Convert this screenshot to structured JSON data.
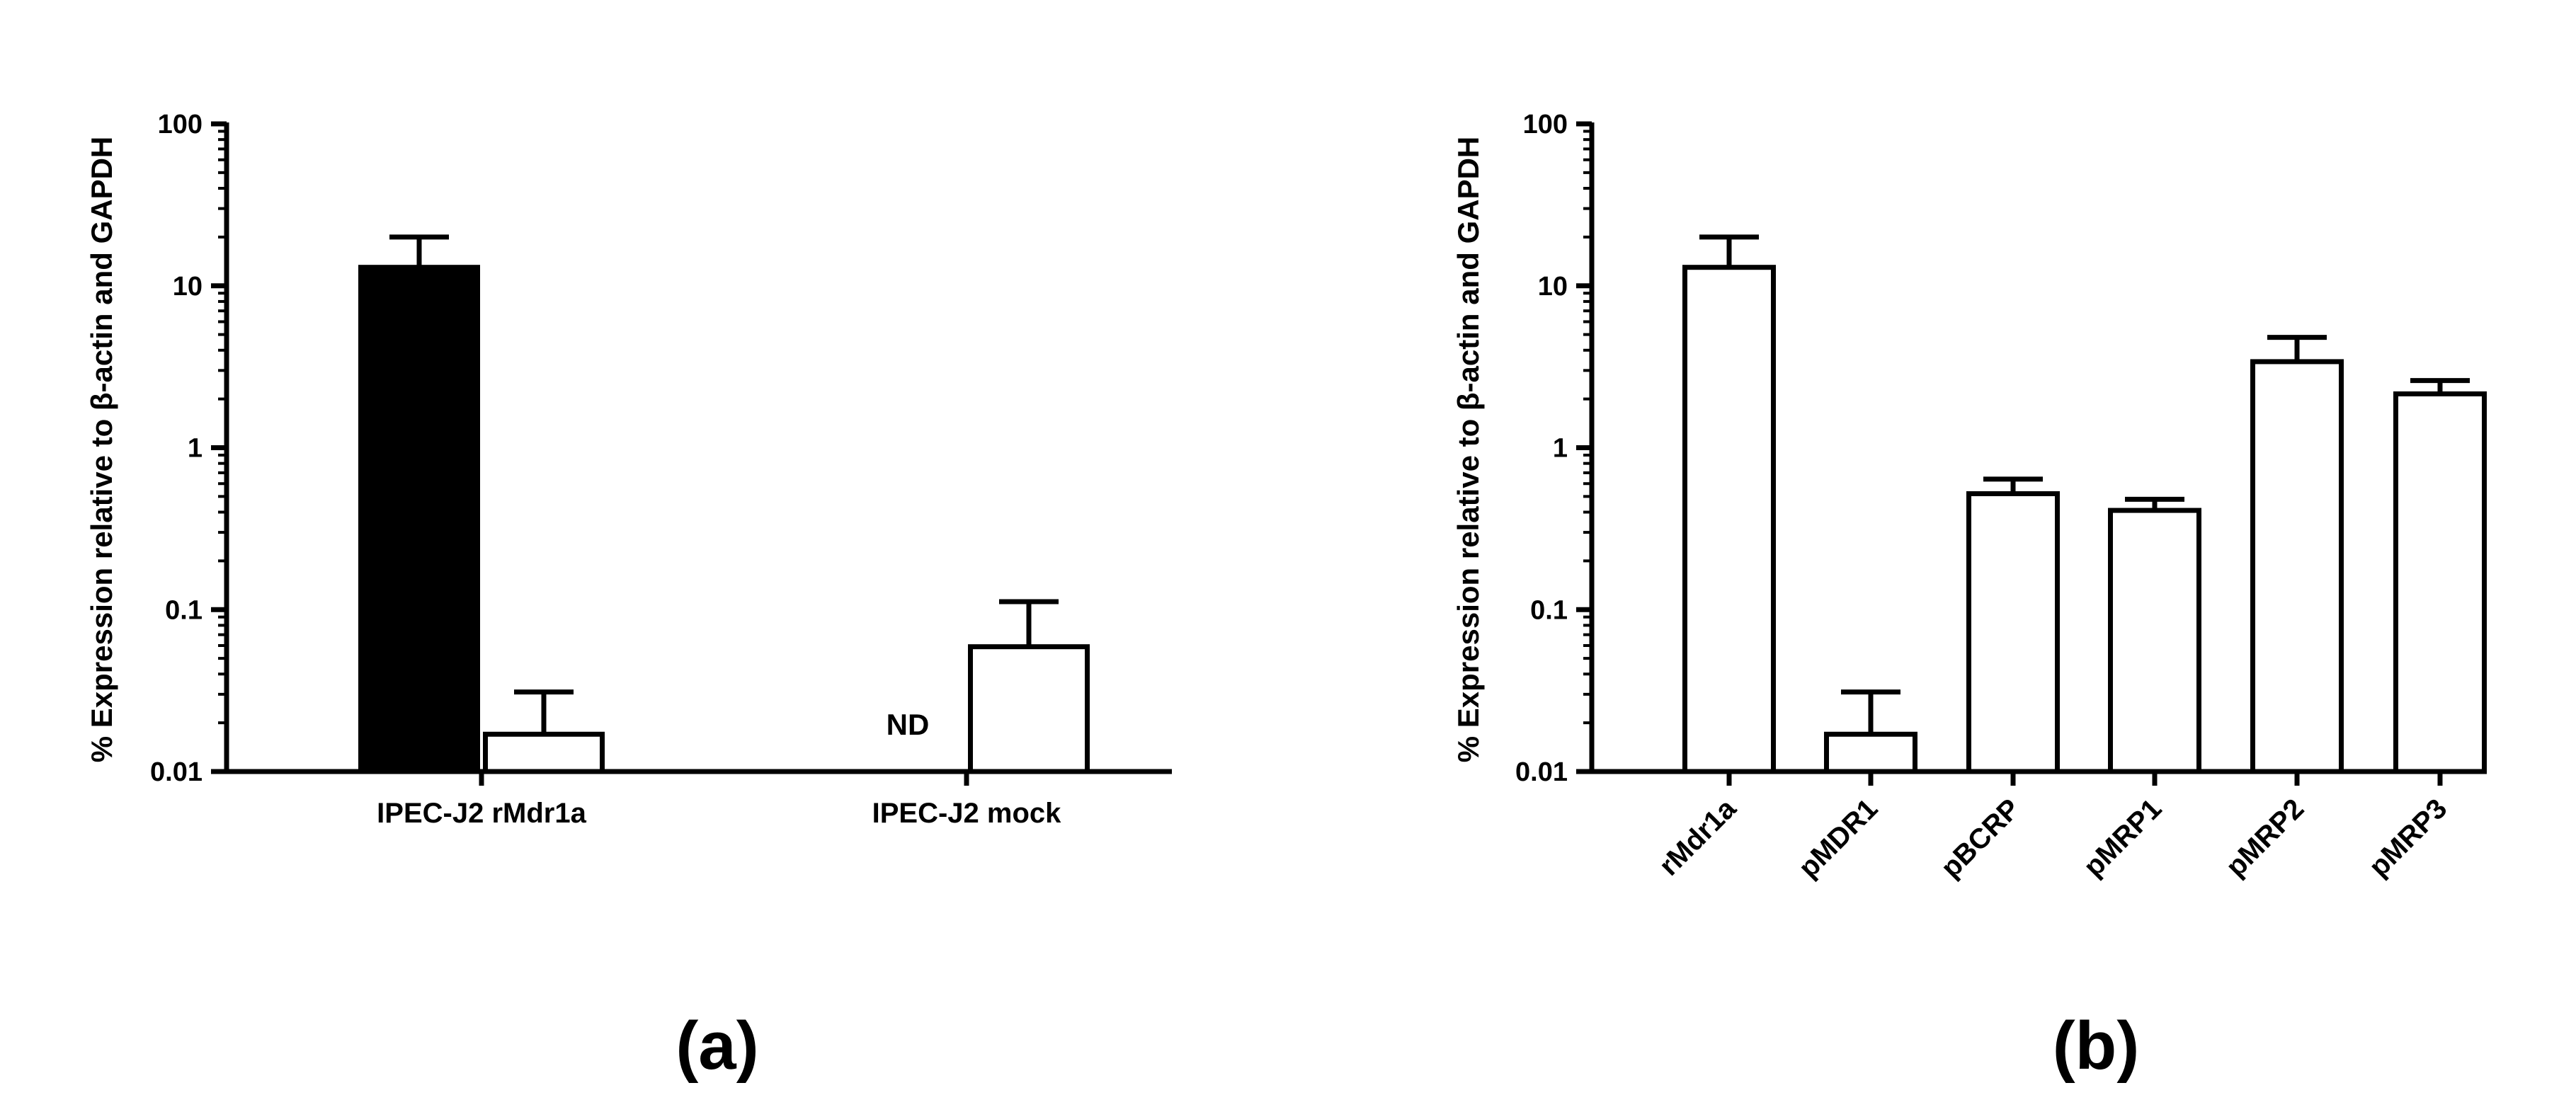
{
  "chart_data": [
    {
      "panel": "(a)",
      "type": "bar",
      "scale": "log",
      "ylabel": "% Expression relative to β-actin and GAPDH",
      "yticks": [
        "100",
        "10",
        "1",
        "0.1",
        "0.01"
      ],
      "ylim": [
        0.01,
        100
      ],
      "categories": [
        "IPEC-J2 rMdr1a",
        "IPEC-J2 mock"
      ],
      "bars": [
        {
          "group": 0,
          "fill": "#000000",
          "value": 13.0,
          "error": 20.0,
          "nd": false,
          "label": ""
        },
        {
          "group": 0,
          "fill": "#ffffff",
          "value": 0.017,
          "error": 0.031,
          "nd": false,
          "label": ""
        },
        {
          "group": 1,
          "fill": "#000000",
          "value": 0.01,
          "error": null,
          "nd": true,
          "label": "ND"
        },
        {
          "group": 1,
          "fill": "#ffffff",
          "value": 0.059,
          "error": 0.112,
          "nd": false,
          "label": ""
        }
      ]
    },
    {
      "panel": "(b)",
      "type": "bar",
      "scale": "log",
      "ylabel": "% Expression relative to β-actin and GAPDH",
      "yticks": [
        "100",
        "10",
        "1",
        "0.1",
        "0.01"
      ],
      "ylim": [
        0.01,
        100
      ],
      "categories": [
        "rMdr1a",
        "pMDR1",
        "pBCRP",
        "pMRP1",
        "pMRP2",
        "pMRP3"
      ],
      "values": [
        13.0,
        0.017,
        0.52,
        0.41,
        3.4,
        2.15
      ],
      "errors": [
        20.0,
        0.031,
        0.64,
        0.48,
        4.8,
        2.6
      ],
      "bar_fill": "#ffffff"
    }
  ],
  "colors": {
    "axis": "#000000",
    "bar_stroke": "#000000"
  }
}
